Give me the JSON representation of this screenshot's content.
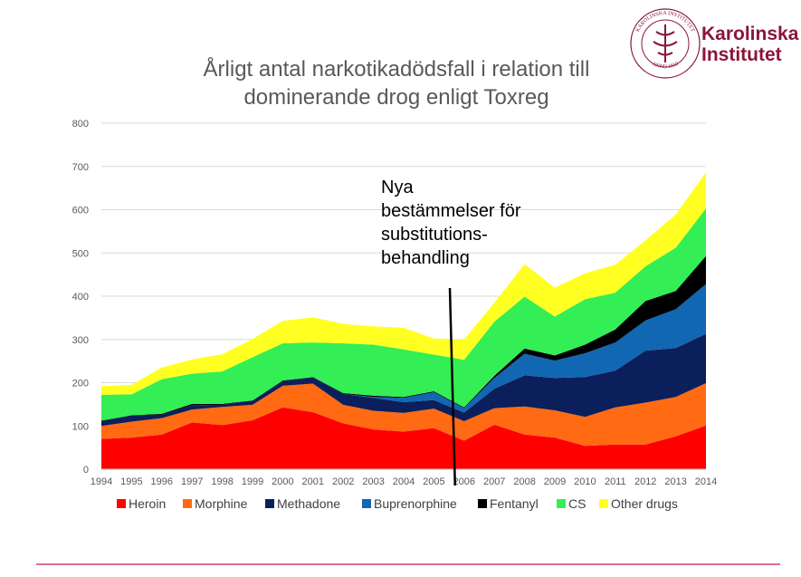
{
  "logo": {
    "line1": "Karolinska",
    "line2": "Institutet",
    "seal_text_top": "KAROLINSKA INSTITUTET",
    "seal_text_bottom": "ANNO 1810",
    "color": "#8a1538"
  },
  "chart_data": {
    "type": "area",
    "stacked": true,
    "title_lines": [
      "Årligt antal narkotikadödsfall i relation till",
      "dominerande drog enligt Toxreg"
    ],
    "xlabel": "",
    "ylabel": "",
    "ylim": [
      0,
      800
    ],
    "yticks": [
      0,
      100,
      200,
      300,
      400,
      500,
      600,
      700,
      800
    ],
    "grid": true,
    "legend_position": "bottom",
    "x": [
      1994,
      1995,
      1996,
      1997,
      1998,
      1999,
      2000,
      2001,
      2002,
      2003,
      2004,
      2005,
      2006,
      2007,
      2008,
      2009,
      2010,
      2011,
      2012,
      2013,
      2014
    ],
    "series": [
      {
        "name": "Heroin",
        "color": "#ff0000",
        "values": [
          70,
          73,
          80,
          108,
          102,
          113,
          143,
          132,
          106,
          92,
          87,
          95,
          66,
          103,
          80,
          73,
          54,
          57,
          57,
          76,
          101
        ]
      },
      {
        "name": "Morphine",
        "color": "#ff6a13",
        "values": [
          30,
          37,
          38,
          30,
          42,
          36,
          50,
          66,
          43,
          43,
          43,
          45,
          45,
          38,
          65,
          63,
          67,
          86,
          97,
          91,
          98
        ]
      },
      {
        "name": "Methadone",
        "color": "#0a1f5c",
        "values": [
          10,
          15,
          8,
          10,
          5,
          10,
          10,
          15,
          25,
          30,
          25,
          20,
          20,
          45,
          72,
          75,
          92,
          85,
          120,
          113,
          114
        ]
      },
      {
        "name": "Buprenorphine",
        "color": "#1167b1",
        "values": [
          0,
          0,
          0,
          0,
          0,
          0,
          0,
          0,
          0,
          2,
          10,
          18,
          10,
          25,
          50,
          40,
          55,
          65,
          70,
          90,
          115
        ]
      },
      {
        "name": "Fentanyl",
        "color": "#000000",
        "values": [
          2,
          0,
          2,
          3,
          2,
          0,
          2,
          0,
          2,
          3,
          2,
          2,
          2,
          5,
          12,
          12,
          20,
          30,
          45,
          42,
          65
        ]
      },
      {
        "name": "CS",
        "color": "#33ee55",
        "values": [
          60,
          48,
          80,
          70,
          75,
          100,
          86,
          80,
          115,
          118,
          110,
          85,
          110,
          125,
          120,
          90,
          105,
          85,
          80,
          100,
          110
        ]
      },
      {
        "name": "Other drugs",
        "color": "#ffff22",
        "values": [
          20,
          22,
          27,
          33,
          40,
          42,
          52,
          58,
          45,
          42,
          50,
          37,
          47,
          44,
          75,
          67,
          60,
          65,
          60,
          77,
          83
        ]
      }
    ],
    "annotation": {
      "lines": [
        "Nya",
        "bestämmelser för",
        "substitutions-",
        "behandling"
      ],
      "x": 2005.7
    }
  }
}
